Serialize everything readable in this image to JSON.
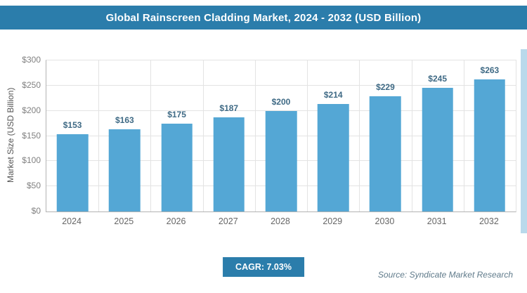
{
  "header": {
    "title": "Global Rainscreen Cladding Market, 2024 - 2032 (USD Billion)"
  },
  "chart_data": {
    "type": "bar",
    "title": "Global Rainscreen Cladding Market, 2024 - 2032 (USD Billion)",
    "categories": [
      "2024",
      "2025",
      "2026",
      "2027",
      "2028",
      "2029",
      "2030",
      "2031",
      "2032"
    ],
    "values": [
      153,
      163,
      175,
      187,
      200,
      214,
      229,
      245,
      263
    ],
    "value_labels": [
      "$153",
      "$163",
      "$175",
      "$187",
      "$200",
      "$214",
      "$229",
      "$245",
      "$263"
    ],
    "xlabel": "",
    "ylabel": "Market Size (USD Billion)",
    "ylim": [
      0,
      300
    ],
    "y_ticks": [
      "$0",
      "$50",
      "$100",
      "$150",
      "$200",
      "$250",
      "$300"
    ],
    "grid": true,
    "legend_position": "none",
    "bar_color": "#54a7d5"
  },
  "footer": {
    "cagr_label": "CAGR: 7.03%",
    "source": "Source: Syndicate Market Research"
  }
}
